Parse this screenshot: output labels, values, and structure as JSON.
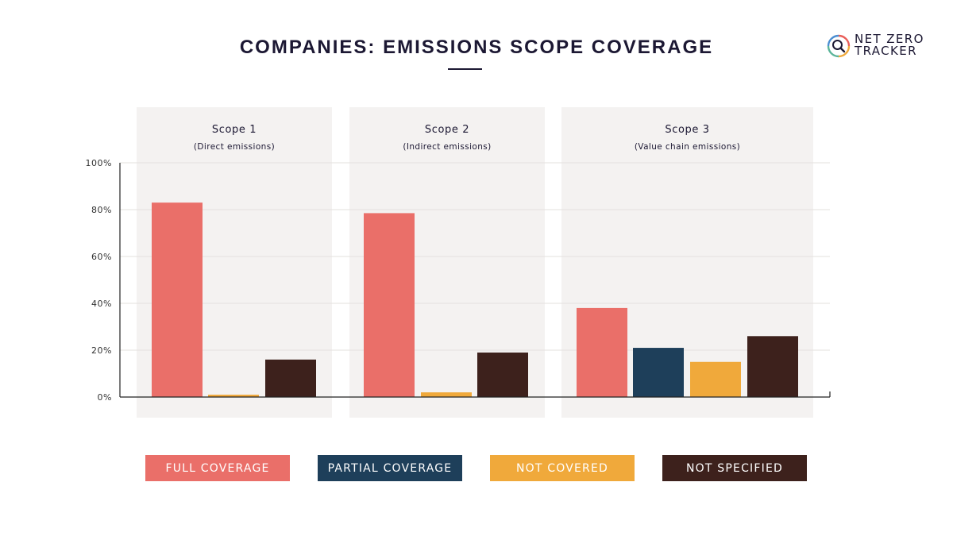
{
  "title": "COMPANIES: EMISSIONS SCOPE COVERAGE",
  "logo": {
    "line1": "NET ZERO",
    "line2": "TRACKER",
    "icon": "magnifier-ring-icon"
  },
  "colors": {
    "full": "#ea6f69",
    "partial": "#1e3f5a",
    "not_covered": "#f0a93b",
    "not_specified": "#3d211c",
    "panel": "#f4f2f1",
    "grid": "#e3e0de",
    "axis": "#222222",
    "text": "#1c1833"
  },
  "chart_data": {
    "type": "bar",
    "ylim": [
      0,
      100
    ],
    "yticks": [
      {
        "value": 0,
        "label": "0%"
      },
      {
        "value": 20,
        "label": "20%"
      },
      {
        "value": 40,
        "label": "40%"
      },
      {
        "value": 60,
        "label": "60%"
      },
      {
        "value": 80,
        "label": "80%"
      },
      {
        "value": 100,
        "label": "100%"
      }
    ],
    "grid": true,
    "legend_position": "bottom",
    "series": [
      {
        "key": "full",
        "name": "FULL COVERAGE"
      },
      {
        "key": "partial",
        "name": "PARTIAL COVERAGE"
      },
      {
        "key": "not_covered",
        "name": "NOT COVERED"
      },
      {
        "key": "not_specified",
        "name": "NOT SPECIFIED"
      }
    ],
    "groups": [
      {
        "label": "Scope 1",
        "sublabel": "(Direct emissions)",
        "values": {
          "full": 83,
          "not_covered": 1,
          "not_specified": 16
        }
      },
      {
        "label": "Scope 2",
        "sublabel": "(Indirect emissions)",
        "values": {
          "full": 78.5,
          "not_covered": 2,
          "not_specified": 19
        }
      },
      {
        "label": "Scope 3",
        "sublabel": "(Value chain emissions)",
        "values": {
          "full": 38,
          "partial": 21,
          "not_covered": 15,
          "not_specified": 26
        }
      }
    ]
  }
}
